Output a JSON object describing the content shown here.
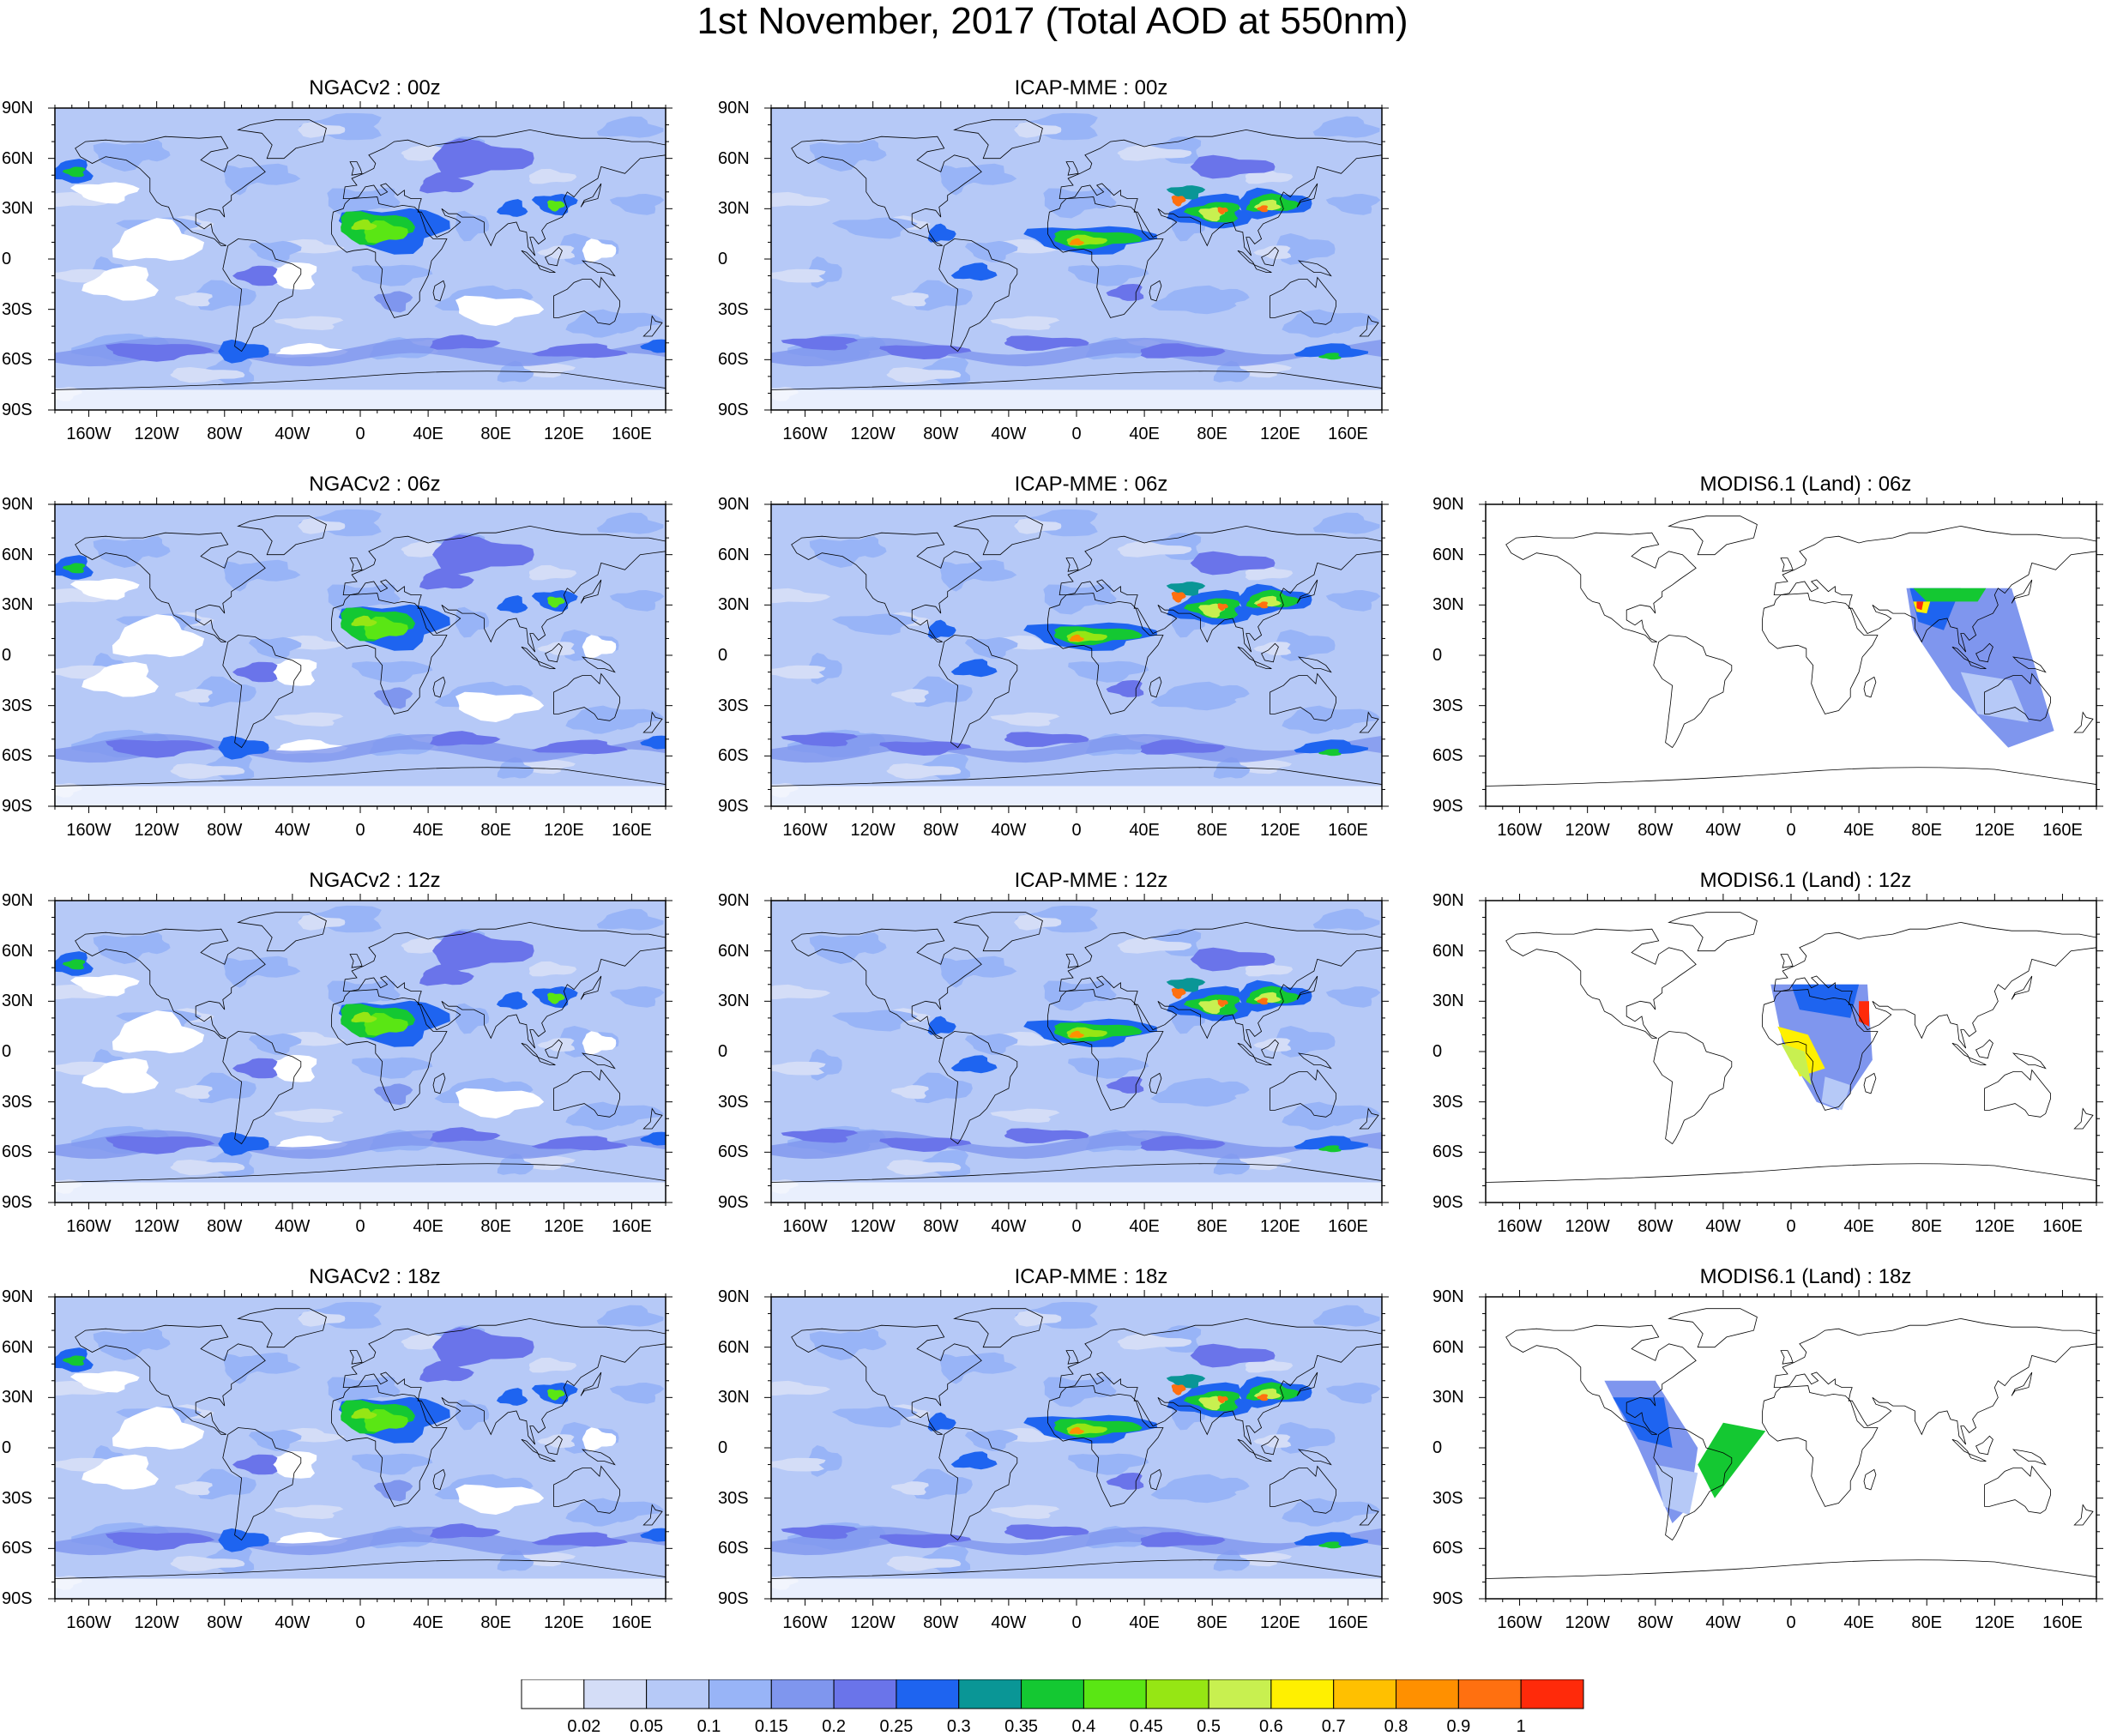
{
  "title": "1st November, 2017 (Total AOD at 550nm)",
  "lat_labels": [
    "90N",
    "60N",
    "30N",
    "0",
    "30S",
    "60S",
    "90S"
  ],
  "lon_labels": [
    "160W",
    "120W",
    "80W",
    "40W",
    "0",
    "40E",
    "80E",
    "120E",
    "160E"
  ],
  "panels": [
    {
      "id": "ngac-00",
      "title": "NGACv2 : 00z",
      "model": "ngac",
      "hour": "00z"
    },
    {
      "id": "icap-00",
      "title": "ICAP-MME : 00z",
      "model": "icap",
      "hour": "00z"
    },
    {
      "id": "ngac-06",
      "title": "NGACv2 : 06z",
      "model": "ngac",
      "hour": "06z"
    },
    {
      "id": "icap-06",
      "title": "ICAP-MME : 06z",
      "model": "icap",
      "hour": "06z"
    },
    {
      "id": "modis-06",
      "title": "MODIS6.1 (Land) : 06z",
      "model": "modis",
      "hour": "06z"
    },
    {
      "id": "ngac-12",
      "title": "NGACv2 : 12z",
      "model": "ngac",
      "hour": "12z"
    },
    {
      "id": "icap-12",
      "title": "ICAP-MME : 12z",
      "model": "icap",
      "hour": "12z"
    },
    {
      "id": "modis-12",
      "title": "MODIS6.1 (Land) : 12z",
      "model": "modis",
      "hour": "12z"
    },
    {
      "id": "ngac-18",
      "title": "NGACv2 : 18z",
      "model": "ngac",
      "hour": "18z"
    },
    {
      "id": "icap-18",
      "title": "ICAP-MME : 18z",
      "model": "icap",
      "hour": "18z"
    },
    {
      "id": "modis-18",
      "title": "MODIS6.1 (Land) : 18z",
      "model": "modis",
      "hour": "18z"
    }
  ],
  "colorbar": {
    "labels": [
      "0.02",
      "0.05",
      "0.1",
      "0.15",
      "0.2",
      "0.25",
      "0.3",
      "0.35",
      "0.4",
      "0.45",
      "0.5",
      "0.6",
      "0.7",
      "0.8",
      "0.9",
      "1"
    ],
    "colors": [
      "#ffffff",
      "#d4ddf7",
      "#b6c9f7",
      "#98b4f7",
      "#7f96ee",
      "#6a74ea",
      "#1e64f0",
      "#0a9696",
      "#14c832",
      "#5ae614",
      "#96e614",
      "#c8f050",
      "#fff000",
      "#ffc000",
      "#ff9000",
      "#ff7010",
      "#ff2a0a"
    ]
  }
}
